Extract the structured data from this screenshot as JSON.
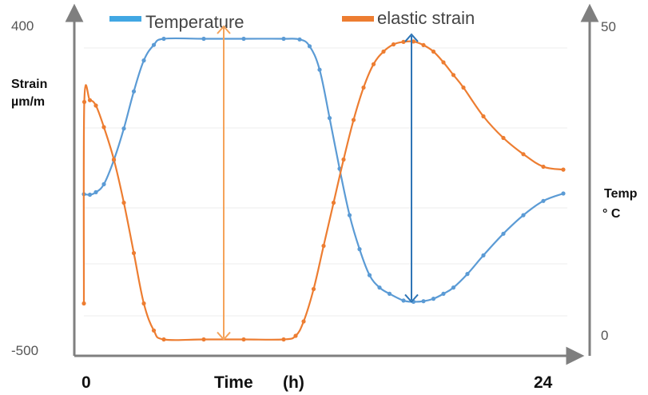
{
  "chart_data": {
    "type": "line",
    "title": "",
    "xlabel": "Time",
    "xlabel_unit": "(h)",
    "x_ticks": [
      "0",
      "24"
    ],
    "xlim": [
      0,
      24
    ],
    "ylabel_left": [
      "Strain",
      "µm/m"
    ],
    "y_left_ticks": [
      "400",
      "-500"
    ],
    "ylim_left": [
      -500,
      400
    ],
    "ylabel_right": [
      "Temp",
      "°  C"
    ],
    "y_right_ticks": [
      "50",
      "0"
    ],
    "ylim_right": [
      0,
      50
    ],
    "legend_position": "top",
    "grid": false,
    "series": [
      {
        "name": "Temperature",
        "axis": "right",
        "color": "#5b9bd5",
        "points": [
          [
            0.0,
            22.9
          ],
          [
            0.3,
            22.8
          ],
          [
            0.6,
            23.2
          ],
          [
            1.0,
            24.5
          ],
          [
            1.5,
            28.4
          ],
          [
            2.0,
            33.5
          ],
          [
            2.5,
            39.5
          ],
          [
            3.0,
            44.5
          ],
          [
            3.5,
            47.0
          ],
          [
            4.0,
            48.0
          ],
          [
            6.0,
            48.0
          ],
          [
            8.0,
            48.0
          ],
          [
            10.0,
            48.0
          ],
          [
            10.8,
            47.9
          ],
          [
            11.3,
            46.8
          ],
          [
            11.8,
            43.0
          ],
          [
            12.3,
            35.2
          ],
          [
            12.8,
            27.0
          ],
          [
            13.3,
            19.5
          ],
          [
            13.8,
            14.0
          ],
          [
            14.3,
            9.8
          ],
          [
            14.8,
            7.8
          ],
          [
            15.3,
            6.8
          ],
          [
            16.0,
            5.7
          ],
          [
            16.5,
            5.5
          ],
          [
            17.0,
            5.6
          ],
          [
            17.5,
            6.0
          ],
          [
            18.0,
            6.8
          ],
          [
            18.5,
            7.8
          ],
          [
            19.2,
            10.0
          ],
          [
            20.0,
            13.0
          ],
          [
            21.0,
            16.5
          ],
          [
            22.0,
            19.5
          ],
          [
            23.0,
            21.8
          ],
          [
            24.0,
            23.0
          ]
        ]
      },
      {
        "name": "elastic strain",
        "axis": "left",
        "color": "#ed7d31",
        "points": [
          [
            0.0,
            -370
          ],
          [
            0.02,
            190
          ],
          [
            0.3,
            195
          ],
          [
            0.6,
            180
          ],
          [
            1.0,
            120
          ],
          [
            1.5,
            30
          ],
          [
            2.0,
            -90
          ],
          [
            2.5,
            -230
          ],
          [
            3.0,
            -370
          ],
          [
            3.5,
            -445
          ],
          [
            4.0,
            -470
          ],
          [
            6.0,
            -470
          ],
          [
            8.0,
            -470
          ],
          [
            10.0,
            -470
          ],
          [
            10.6,
            -460
          ],
          [
            11.0,
            -420
          ],
          [
            11.5,
            -330
          ],
          [
            12.0,
            -210
          ],
          [
            12.5,
            -90
          ],
          [
            13.0,
            30
          ],
          [
            13.5,
            140
          ],
          [
            14.0,
            230
          ],
          [
            14.5,
            295
          ],
          [
            15.0,
            330
          ],
          [
            15.5,
            350
          ],
          [
            16.0,
            357
          ],
          [
            16.5,
            358
          ],
          [
            17.0,
            348
          ],
          [
            17.5,
            330
          ],
          [
            18.0,
            300
          ],
          [
            18.5,
            265
          ],
          [
            19.0,
            230
          ],
          [
            20.0,
            150
          ],
          [
            21.0,
            90
          ],
          [
            22.0,
            45
          ],
          [
            23.0,
            10
          ],
          [
            24.0,
            2
          ]
        ]
      }
    ],
    "annotations": [
      {
        "type": "double-arrow",
        "color": "#f5a35a",
        "x": 7,
        "axis": "left",
        "from": -470,
        "to": 400
      },
      {
        "type": "double-arrow",
        "color": "#2e75b6",
        "x": 16.4,
        "axis": "right",
        "from": 5.5,
        "to": 48.7
      }
    ]
  }
}
